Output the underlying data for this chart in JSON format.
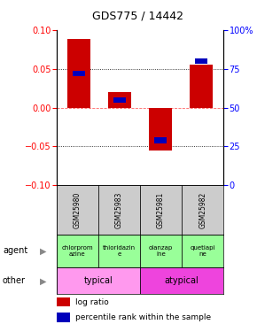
{
  "title": "GDS775 / 14442",
  "samples": [
    "GSM25980",
    "GSM25983",
    "GSM25981",
    "GSM25982"
  ],
  "log_ratio": [
    0.088,
    0.02,
    -0.055,
    0.055
  ],
  "percentile_rank": [
    72,
    55,
    29,
    80
  ],
  "agent_labels": [
    "chlorprom\nazine",
    "thioridazin\ne",
    "olanzap\nine",
    "quetiapi\nne"
  ],
  "ylim": [
    -0.1,
    0.1
  ],
  "yticks_left": [
    -0.1,
    -0.05,
    0.0,
    0.05,
    0.1
  ],
  "yticks_right_labels": [
    "0",
    "25",
    "50",
    "75",
    "100%"
  ],
  "bar_width": 0.55,
  "blue_bar_width": 0.3,
  "red_color": "#cc0000",
  "blue_color": "#0000bb",
  "background_color": "#ffffff",
  "typical_color": "#ff99ee",
  "atypical_color": "#ee44dd",
  "agent_color": "#99ff99",
  "sample_bg_color": "#cccccc"
}
